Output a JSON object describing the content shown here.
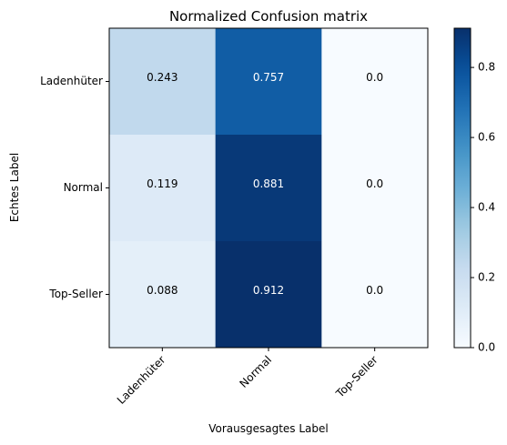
{
  "chart_data": {
    "type": "heatmap",
    "title": "Normalized Confusion matrix",
    "xlabel": "Vorausgesagtes Label",
    "ylabel": "Echtes Label",
    "x_categories": [
      "Ladenhüter",
      "Normal",
      "Top-Seller"
    ],
    "y_categories": [
      "Ladenhüter",
      "Normal",
      "Top-Seller"
    ],
    "values": [
      [
        0.243,
        0.757,
        0.0
      ],
      [
        0.119,
        0.881,
        0.0
      ],
      [
        0.088,
        0.912,
        0.0
      ]
    ],
    "cell_labels": [
      [
        "0.243",
        "0.757",
        "0.0"
      ],
      [
        "0.119",
        "0.881",
        "0.0"
      ],
      [
        "0.088",
        "0.912",
        "0.0"
      ]
    ],
    "colormap": "Blues",
    "vmin": 0.0,
    "vmax": 0.912,
    "colorbar_ticks": [
      0.0,
      0.2,
      0.4,
      0.6,
      0.8
    ],
    "colorbar_tick_labels": [
      "0.0",
      "0.2",
      "0.4",
      "0.6",
      "0.8"
    ],
    "grid": false,
    "colors": {
      "low": "#f7fbff",
      "high": "#08306b",
      "text_dark": "#000000",
      "text_light": "#ffffff"
    }
  }
}
